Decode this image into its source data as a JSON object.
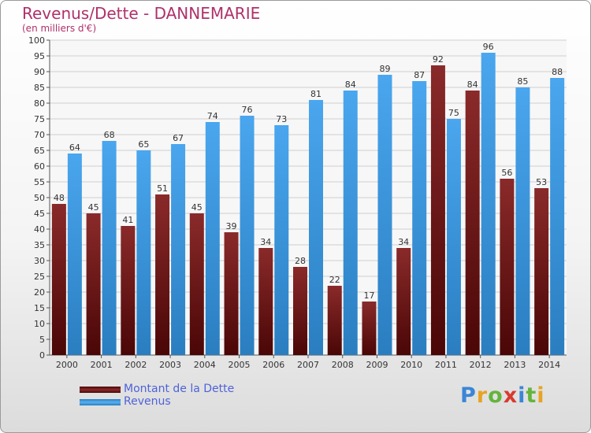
{
  "title": "Revenus/Dette - DANNEMARIE",
  "subtitle": "(en milliers d'€)",
  "logo": {
    "text": "Proxiti",
    "letter_colors": [
      "#3a86d6",
      "#e8a323",
      "#64b43c",
      "#d83a30",
      "#3a86d6",
      "#64b43c",
      "#e8a323"
    ]
  },
  "legend": [
    {
      "label": "Montant de la Dette",
      "color": "#7a1a1a"
    },
    {
      "label": "Revenus",
      "color": "#3d99e0"
    }
  ],
  "chart_data": {
    "type": "bar",
    "categories": [
      "2000",
      "2001",
      "2002",
      "2003",
      "2004",
      "2005",
      "2006",
      "2007",
      "2008",
      "2009",
      "2010",
      "2011",
      "2012",
      "2013",
      "2014"
    ],
    "series": [
      {
        "name": "Montant de la Dette",
        "color": "#7a1a1a",
        "values": [
          48,
          45,
          41,
          51,
          45,
          39,
          34,
          28,
          22,
          17,
          34,
          92,
          84,
          56,
          53
        ]
      },
      {
        "name": "Revenus",
        "color": "#3d99e0",
        "values": [
          64,
          68,
          65,
          67,
          74,
          76,
          73,
          81,
          84,
          89,
          87,
          75,
          96,
          85,
          88
        ]
      }
    ],
    "ylim": [
      0,
      100
    ],
    "ytick_step": 5,
    "grid": true,
    "data_labels": true,
    "legend_position": "bottom-left"
  }
}
